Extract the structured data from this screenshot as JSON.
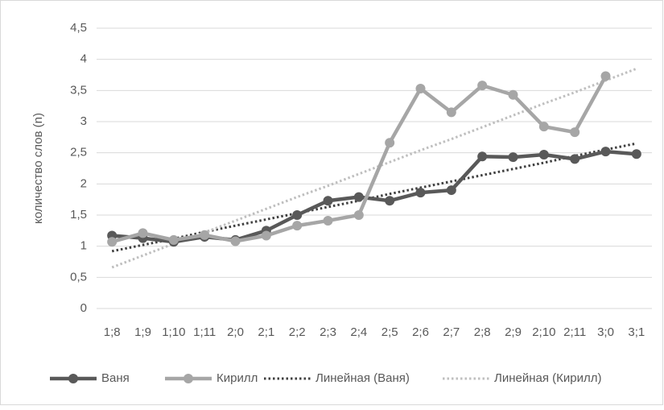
{
  "chart_data": {
    "type": "line",
    "y_label": "количество слов (n)",
    "categories": [
      "1;8",
      "1;9",
      "1;10",
      "1;11",
      "2;0",
      "2;1",
      "2;2",
      "2;3",
      "2;4",
      "2;5",
      "2;6",
      "2;7",
      "2;8",
      "2;9",
      "2;10",
      "2;11",
      "3;0",
      "3;1"
    ],
    "series": [
      {
        "name": "Ваня",
        "color": "#595959",
        "style": "solid",
        "markers": true,
        "values": [
          1.17,
          1.13,
          1.07,
          1.15,
          1.1,
          1.25,
          1.5,
          1.73,
          1.79,
          1.73,
          1.86,
          1.9,
          2.44,
          2.43,
          2.47,
          2.4,
          2.52,
          2.48
        ]
      },
      {
        "name": "Кирилл",
        "color": "#a6a6a6",
        "style": "solid",
        "markers": true,
        "values": [
          1.07,
          1.21,
          1.1,
          1.18,
          1.08,
          1.17,
          1.33,
          1.41,
          1.5,
          2.66,
          3.53,
          3.15,
          3.58,
          3.43,
          2.92,
          2.83,
          3.73,
          null
        ]
      },
      {
        "name": "Линейная (Ваня)",
        "color": "#404040",
        "style": "dotted",
        "markers": false,
        "values": [
          0.92,
          1.02,
          1.12,
          1.23,
          1.33,
          1.43,
          1.53,
          1.63,
          1.73,
          1.84,
          1.94,
          2.04,
          2.14,
          2.24,
          2.34,
          2.45,
          2.55,
          2.65
        ]
      },
      {
        "name": "Линейная (Кирилл)",
        "color": "#bfbfbf",
        "style": "dotted",
        "markers": false,
        "values": [
          0.66,
          0.85,
          1.04,
          1.22,
          1.41,
          1.6,
          1.79,
          1.97,
          2.16,
          2.35,
          2.54,
          2.72,
          2.91,
          3.1,
          3.29,
          3.47,
          3.66,
          3.85
        ]
      }
    ],
    "ylim": [
      0,
      4.5
    ],
    "yticks": [
      0,
      {
        "value": 0.5,
        "label": "0,5"
      },
      1,
      {
        "value": 1.5,
        "label": "1,5"
      },
      2,
      {
        "value": 2.5,
        "label": "2,5"
      },
      3,
      {
        "value": 3.5,
        "label": "3,5"
      },
      4,
      {
        "value": 4.5,
        "label": "4,5"
      }
    ],
    "grid": true,
    "legend": "bottom"
  }
}
